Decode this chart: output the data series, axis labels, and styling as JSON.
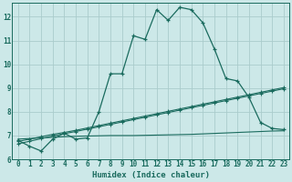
{
  "xlabel": "Humidex (Indice chaleur)",
  "background_color": "#cce8e8",
  "grid_color": "#aacccc",
  "line_color": "#1a6b5e",
  "xlim": [
    -0.5,
    23.5
  ],
  "ylim": [
    6.0,
    12.6
  ],
  "yticks": [
    6,
    7,
    8,
    9,
    10,
    11,
    12
  ],
  "xticks": [
    0,
    1,
    2,
    3,
    4,
    5,
    6,
    7,
    8,
    9,
    10,
    11,
    12,
    13,
    14,
    15,
    16,
    17,
    18,
    19,
    20,
    21,
    22,
    23
  ],
  "series1_x": [
    0,
    1,
    2,
    3,
    4,
    5,
    6,
    7,
    8,
    9,
    10,
    11,
    12,
    13,
    14,
    15,
    16,
    17,
    18,
    19,
    20,
    21,
    22,
    23
  ],
  "series1_y": [
    6.8,
    6.55,
    6.35,
    6.85,
    7.1,
    6.85,
    6.9,
    8.0,
    9.6,
    9.6,
    11.2,
    11.05,
    12.3,
    11.85,
    12.4,
    12.3,
    11.75,
    10.65,
    9.4,
    9.3,
    8.6,
    7.55,
    7.3,
    7.25
  ],
  "series2_x": [
    0,
    1,
    2,
    3,
    4,
    5,
    6,
    7,
    8,
    9,
    10,
    11,
    12,
    13,
    14,
    15,
    16,
    17,
    18,
    19,
    20,
    21,
    22,
    23
  ],
  "series2_y": [
    6.75,
    6.85,
    6.95,
    7.05,
    7.13,
    7.22,
    7.32,
    7.42,
    7.52,
    7.62,
    7.72,
    7.82,
    7.92,
    8.02,
    8.12,
    8.22,
    8.32,
    8.42,
    8.52,
    8.62,
    8.72,
    8.82,
    8.92,
    9.02
  ],
  "series3_x": [
    0,
    1,
    2,
    3,
    4,
    5,
    6,
    7,
    8,
    9,
    10,
    11,
    12,
    13,
    14,
    15,
    16,
    17,
    18,
    19,
    20,
    21,
    22,
    23
  ],
  "series3_y": [
    6.65,
    6.76,
    6.87,
    6.98,
    7.08,
    7.17,
    7.27,
    7.37,
    7.47,
    7.57,
    7.67,
    7.77,
    7.87,
    7.97,
    8.07,
    8.17,
    8.27,
    8.37,
    8.47,
    8.57,
    8.67,
    8.77,
    8.87,
    8.97
  ],
  "series4_x": [
    0,
    4,
    5,
    6,
    7,
    8,
    9,
    10,
    11,
    12,
    13,
    14,
    15,
    16,
    17,
    18,
    19,
    20,
    21,
    22,
    23
  ],
  "series4_y": [
    6.85,
    6.95,
    6.97,
    6.98,
    6.99,
    7.0,
    7.0,
    7.0,
    7.01,
    7.02,
    7.03,
    7.04,
    7.05,
    7.07,
    7.09,
    7.11,
    7.13,
    7.15,
    7.17,
    7.19,
    7.2
  ]
}
